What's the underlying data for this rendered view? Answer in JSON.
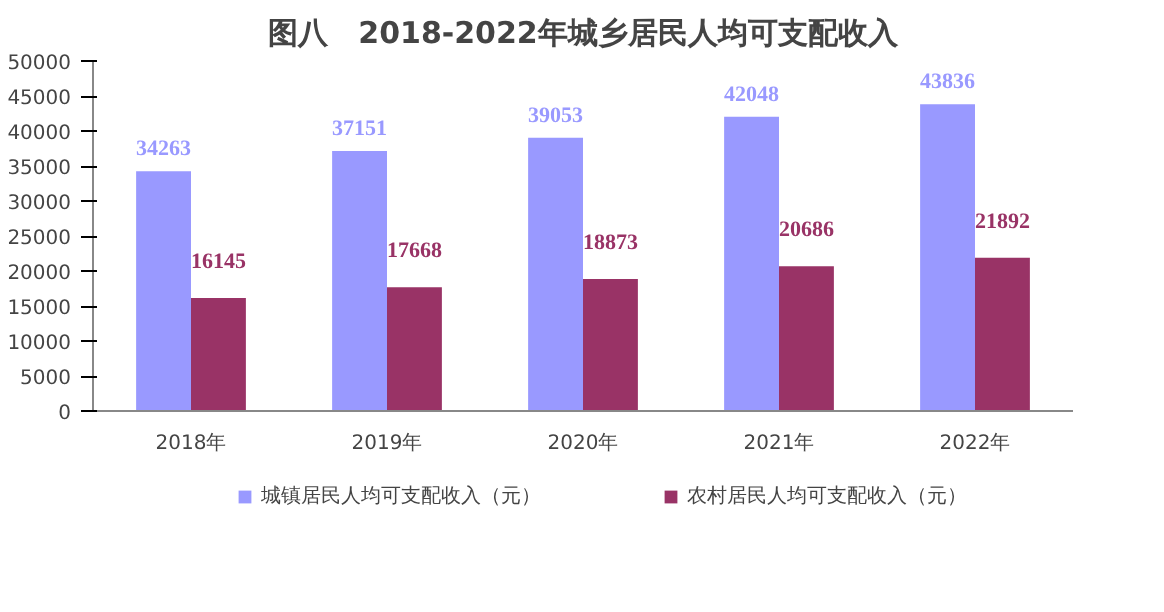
{
  "chart_data": {
    "type": "bar",
    "title": "图八　2018-2022年城乡居民人均可支配收入",
    "categories": [
      "2018年",
      "2019年",
      "2020年",
      "2021年",
      "2022年"
    ],
    "series": [
      {
        "name": "城镇居民人均可支配收入（元）",
        "color": "#9999ff",
        "values": [
          34263,
          37151,
          39053,
          42048,
          43836
        ]
      },
      {
        "name": "农村居民人均可支配收入（元）",
        "color": "#993366",
        "values": [
          16145,
          17668,
          18873,
          20686,
          21892
        ]
      }
    ],
    "ylim": [
      0,
      50000
    ],
    "yticks": [
      0,
      5000,
      10000,
      15000,
      20000,
      25000,
      30000,
      35000,
      40000,
      45000,
      50000
    ],
    "data_labels": true,
    "legend": "bottom",
    "grid": false
  }
}
